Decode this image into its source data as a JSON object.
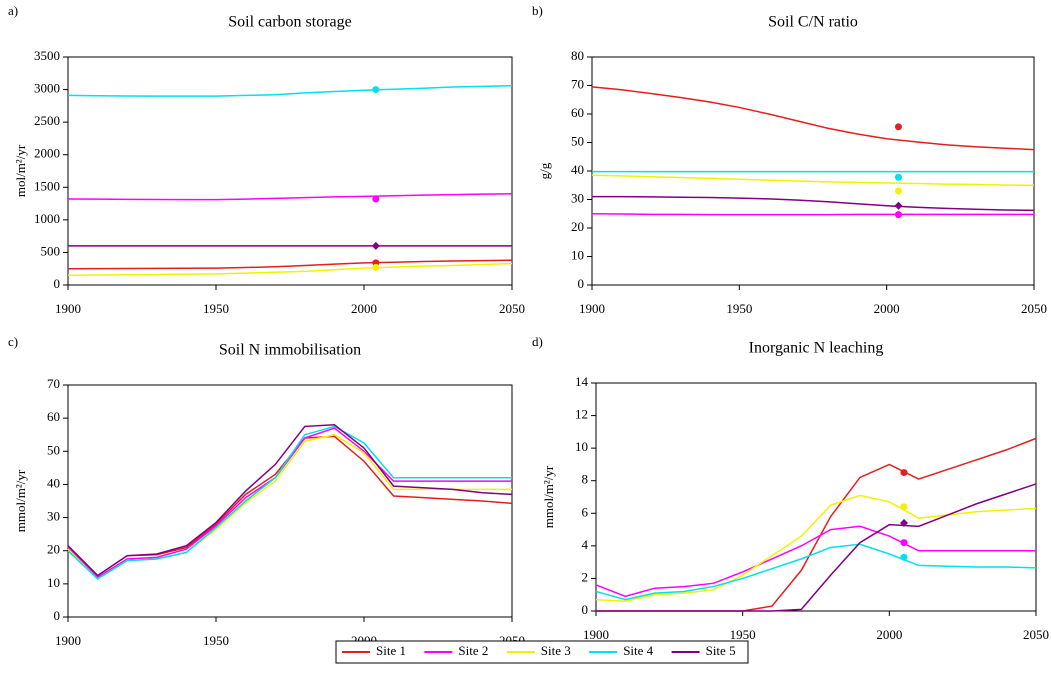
{
  "chart_data": [
    {
      "type": "line",
      "panel": "a)",
      "title": "Soil carbon storage",
      "y_label": "mol/m²/yr",
      "x": [
        1900,
        1910,
        1920,
        1930,
        1940,
        1950,
        1960,
        1970,
        1980,
        1990,
        2000,
        2010,
        2020,
        2030,
        2040,
        2050
      ],
      "xlim": [
        1900,
        2050
      ],
      "xticks": [
        1900,
        1950,
        2000,
        2050
      ],
      "ylim": [
        0,
        3500
      ],
      "yticks": [
        0,
        500,
        1000,
        1500,
        2000,
        2500,
        3000,
        3500
      ],
      "series": [
        {
          "name": "Site 1",
          "color": "#e41e1e",
          "marker": "circle",
          "values": [
            250,
            252,
            254,
            256,
            258,
            260,
            268,
            280,
            300,
            320,
            340,
            350,
            360,
            368,
            375,
            380
          ],
          "observed": {
            "x": 2004,
            "value": 340
          }
        },
        {
          "name": "Site 2",
          "color": "#ff00ff",
          "marker": "circle",
          "values": [
            1320,
            1318,
            1315,
            1312,
            1310,
            1310,
            1318,
            1330,
            1342,
            1352,
            1360,
            1370,
            1380,
            1388,
            1395,
            1400
          ],
          "observed": {
            "x": 2004,
            "value": 1320
          }
        },
        {
          "name": "Site 3",
          "color": "#f2f200",
          "marker": "circle",
          "values": [
            150,
            154,
            158,
            162,
            166,
            170,
            182,
            195,
            210,
            235,
            260,
            275,
            290,
            300,
            315,
            330
          ],
          "observed": {
            "x": 2004,
            "value": 270
          }
        },
        {
          "name": "Site 4",
          "color": "#00e0ee",
          "marker": "circle",
          "values": [
            2910,
            2905,
            2902,
            2900,
            2900,
            2900,
            2910,
            2920,
            2950,
            2970,
            2990,
            3005,
            3020,
            3040,
            3050,
            3060
          ],
          "observed": {
            "x": 2004,
            "value": 3000
          }
        },
        {
          "name": "Site 5",
          "color": "#800080",
          "marker": "diamond",
          "values": [
            600,
            600,
            600,
            600,
            600,
            600,
            600,
            600,
            600,
            600,
            600,
            600,
            600,
            600,
            600,
            600
          ],
          "observed": {
            "x": 2004,
            "value": 600
          }
        }
      ]
    },
    {
      "type": "line",
      "panel": "b)",
      "title": "Soil C/N ratio",
      "y_label": "g/g",
      "x": [
        1900,
        1910,
        1920,
        1930,
        1940,
        1950,
        1960,
        1970,
        1980,
        1990,
        2000,
        2010,
        2020,
        2030,
        2040,
        2050
      ],
      "xlim": [
        1900,
        2050
      ],
      "xticks": [
        1900,
        1950,
        2000,
        2050
      ],
      "ylim": [
        0,
        80
      ],
      "yticks": [
        0,
        10,
        20,
        30,
        40,
        50,
        60,
        70,
        80
      ],
      "series": [
        {
          "color": "#e41e1e",
          "marker": "circle",
          "values": [
            69.5,
            68.5,
            67.2,
            65.8,
            64.2,
            62.3,
            60,
            57.5,
            55,
            53,
            51.3,
            50.2,
            49.2,
            48.5,
            48,
            47.5
          ],
          "observed": {
            "x": 2004,
            "value": 55.5
          }
        },
        {
          "color": "#ff00ff",
          "marker": "circle",
          "values": [
            25,
            24.9,
            24.8,
            24.8,
            24.7,
            24.7,
            24.7,
            24.7,
            24.7,
            24.8,
            24.8,
            24.8,
            24.8,
            24.8,
            24.8,
            24.8
          ],
          "observed": {
            "x": 2004,
            "value": 24.7
          }
        },
        {
          "color": "#f2f200",
          "marker": "circle",
          "values": [
            38.5,
            38.3,
            38,
            37.7,
            37.4,
            37.1,
            36.8,
            36.5,
            36.2,
            36,
            35.8,
            35.6,
            35.4,
            35.3,
            35.1,
            35
          ],
          "observed": {
            "x": 2004,
            "value": 33
          }
        },
        {
          "color": "#00e0ee",
          "marker": "circle",
          "values": [
            39.8,
            39.8,
            39.8,
            39.8,
            39.8,
            39.8,
            39.8,
            39.8,
            39.8,
            39.8,
            39.8,
            39.8,
            39.8,
            39.8,
            39.8,
            39.8
          ],
          "observed": {
            "x": 2004,
            "value": 37.8
          }
        },
        {
          "color": "#800080",
          "marker": "diamond",
          "values": [
            31,
            31,
            30.9,
            30.8,
            30.7,
            30.5,
            30.2,
            29.8,
            29.2,
            28.5,
            27.8,
            27.3,
            26.9,
            26.6,
            26.3,
            26.2
          ],
          "observed": {
            "x": 2004,
            "value": 27.8
          }
        }
      ]
    },
    {
      "type": "line",
      "panel": "c)",
      "title": "Soil N immobilisation",
      "y_label": "mmol/m²/yr",
      "x": [
        1900,
        1910,
        1920,
        1930,
        1940,
        1950,
        1960,
        1970,
        1980,
        1990,
        2000,
        2010,
        2020,
        2030,
        2040,
        2050
      ],
      "xlim": [
        1900,
        2050
      ],
      "xticks": [
        1900,
        1950,
        2000,
        2050
      ],
      "ylim": [
        0,
        70
      ],
      "yticks": [
        0,
        10,
        20,
        30,
        40,
        50,
        60,
        70
      ],
      "series": [
        {
          "color": "#e41e1e",
          "values": [
            21.5,
            12.5,
            18.5,
            18.8,
            21,
            28,
            37,
            43,
            54,
            54.5,
            47,
            36.5,
            36,
            35.5,
            35,
            34.3
          ]
        },
        {
          "color": "#ff00ff",
          "values": [
            21,
            12,
            17.5,
            18,
            20.5,
            27.5,
            36,
            42,
            54,
            57,
            50,
            41,
            41,
            41,
            41,
            41
          ]
        },
        {
          "color": "#f2f200",
          "values": [
            20.5,
            11.5,
            17,
            17.5,
            19.5,
            26.5,
            34.5,
            41,
            53,
            55,
            49.5,
            38.5,
            38.5,
            38.5,
            38.5,
            38.5
          ]
        },
        {
          "color": "#00e0ee",
          "values": [
            20,
            11.5,
            17,
            17.5,
            19.5,
            27,
            35,
            42,
            55,
            57.5,
            52.5,
            42,
            42,
            42,
            42,
            42
          ]
        },
        {
          "color": "#800080",
          "values": [
            21.5,
            12.5,
            18.5,
            19,
            21.5,
            28.5,
            38,
            46,
            57.5,
            58,
            51,
            39.5,
            39,
            38.5,
            37.5,
            37
          ]
        }
      ]
    },
    {
      "type": "line",
      "panel": "d)",
      "title": "Inorganic N leaching",
      "y_label": "mmol/m²/yr",
      "x": [
        1900,
        1910,
        1920,
        1930,
        1940,
        1950,
        1960,
        1970,
        1980,
        1990,
        2000,
        2010,
        2020,
        2030,
        2040,
        2050
      ],
      "xlim": [
        1900,
        2050
      ],
      "xticks": [
        1900,
        1950,
        2000,
        2050
      ],
      "ylim": [
        0,
        14
      ],
      "yticks": [
        0,
        2,
        4,
        6,
        8,
        10,
        12,
        14
      ],
      "series": [
        {
          "color": "#e41e1e",
          "marker": "circle",
          "values": [
            0,
            0,
            0,
            0,
            0,
            0,
            0.3,
            2.5,
            5.8,
            8.2,
            9,
            8.1,
            8.7,
            9.3,
            9.9,
            10.6
          ],
          "observed": {
            "x": 2005,
            "value": 8.5
          }
        },
        {
          "color": "#ff00ff",
          "marker": "circle",
          "values": [
            1.6,
            0.9,
            1.4,
            1.5,
            1.7,
            2.4,
            3.2,
            4,
            5,
            5.2,
            4.6,
            3.7,
            3.7,
            3.7,
            3.7,
            3.7
          ],
          "observed": {
            "x": 2005,
            "value": 4.2
          }
        },
        {
          "color": "#f2f200",
          "marker": "circle",
          "values": [
            0.7,
            0.6,
            1,
            1.1,
            1.3,
            2.2,
            3.4,
            4.6,
            6.5,
            7.1,
            6.7,
            5.7,
            5.9,
            6.1,
            6.2,
            6.3
          ],
          "observed": {
            "x": 2005,
            "value": 6.4
          }
        },
        {
          "color": "#00e0ee",
          "marker": "circle",
          "values": [
            1.2,
            0.7,
            1.1,
            1.2,
            1.5,
            2,
            2.6,
            3.2,
            3.9,
            4.1,
            3.5,
            2.8,
            2.75,
            2.7,
            2.7,
            2.65
          ],
          "observed": {
            "x": 2005,
            "value": 3.3
          }
        },
        {
          "color": "#800080",
          "marker": "diamond",
          "values": [
            0,
            0,
            0,
            0,
            0,
            0,
            0,
            0.1,
            2.2,
            4.2,
            5.3,
            5.2,
            5.9,
            6.6,
            7.2,
            7.8
          ],
          "observed": {
            "x": 2005,
            "value": 5.4
          }
        }
      ]
    }
  ]
}
